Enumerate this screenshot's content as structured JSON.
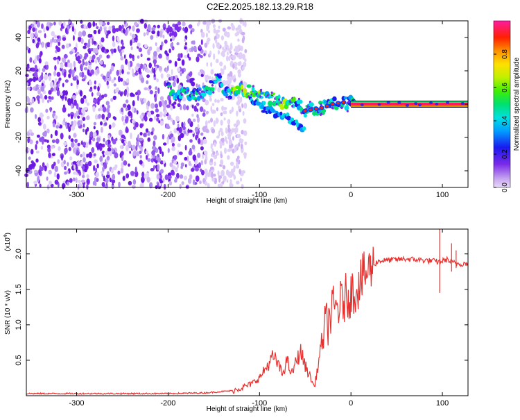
{
  "title": "C2E2.2025.182.13.29.R18",
  "chart_data": [
    {
      "type": "heatmap",
      "xlabel": "Height of straight line (km)",
      "ylabel": "Frequency (Hz)",
      "xlim": [
        -355,
        128
      ],
      "ylim": [
        -50,
        50
      ],
      "xticks": [
        -300,
        -200,
        -100,
        0,
        100
      ],
      "yticks": [
        -40,
        -20,
        0,
        20,
        40
      ],
      "grid": false,
      "colorbar": {
        "label": "Normalized spectral amplitude",
        "range": [
          0,
          1
        ],
        "ticks": [
          0.0,
          0.2,
          0.4,
          0.6,
          0.8
        ]
      },
      "noise_region_x": [
        -355,
        -160
      ],
      "trace": [
        {
          "x": -200,
          "y": 10
        },
        {
          "x": -190,
          "y": 6
        },
        {
          "x": -180,
          "y": 7
        },
        {
          "x": -170,
          "y": 5
        },
        {
          "x": -160,
          "y": 8
        },
        {
          "x": -150,
          "y": 12
        },
        {
          "x": -145,
          "y": 16
        },
        {
          "x": -140,
          "y": 9
        },
        {
          "x": -130,
          "y": 6
        },
        {
          "x": -120,
          "y": 10
        },
        {
          "x": -110,
          "y": 7
        },
        {
          "x": -100,
          "y": 4
        },
        {
          "x": -90,
          "y": 4
        },
        {
          "x": -80,
          "y": 2
        },
        {
          "x": -70,
          "y": 0
        },
        {
          "x": -60,
          "y": 0
        },
        {
          "x": -50,
          "y": -4
        },
        {
          "x": -40,
          "y": -3
        },
        {
          "x": -30,
          "y": -2
        },
        {
          "x": -20,
          "y": 0
        },
        {
          "x": -10,
          "y": 1
        },
        {
          "x": 0,
          "y": 1
        },
        {
          "x": 10,
          "y": 0
        },
        {
          "x": 50,
          "y": 0
        },
        {
          "x": 100,
          "y": 0
        },
        {
          "x": 128,
          "y": 0
        }
      ],
      "branch": [
        {
          "x": -110,
          "y": 2
        },
        {
          "x": -95,
          "y": -3
        },
        {
          "x": -80,
          "y": -6
        },
        {
          "x": -70,
          "y": -8
        },
        {
          "x": -60,
          "y": -12
        },
        {
          "x": -50,
          "y": -16
        }
      ]
    },
    {
      "type": "line",
      "xlabel": "Height of straight line (km)",
      "ylabel": "SNR (10 * v/v)",
      "yscale_note": "(x10",
      "yscale_exp": "4",
      "xlim": [
        -355,
        128
      ],
      "ylim": [
        0,
        2.35
      ],
      "xticks": [
        -300,
        -200,
        -100,
        0,
        100
      ],
      "yticks": [
        0.5,
        1.0,
        1.5,
        2.0
      ],
      "grid": false,
      "color": "#e8312e",
      "series": [
        {
          "x": [
            -355,
            -300,
            -250,
            -200,
            -160,
            -130,
            -120,
            -110,
            -100,
            -95,
            -90,
            -85,
            -80,
            -75,
            -70,
            -65,
            -60,
            -55,
            -50,
            -45,
            -40,
            -35,
            -30,
            -25,
            -20,
            -15,
            -10,
            -5,
            0,
            5,
            10,
            15,
            20,
            25,
            30,
            40,
            50,
            60,
            70,
            80,
            90,
            95,
            100,
            105,
            110,
            115,
            120,
            128
          ],
          "y": [
            0.03,
            0.03,
            0.03,
            0.03,
            0.04,
            0.07,
            0.11,
            0.16,
            0.25,
            0.35,
            0.45,
            0.55,
            0.45,
            0.3,
            0.5,
            0.3,
            0.48,
            0.62,
            0.42,
            0.28,
            0.12,
            0.5,
            0.9,
            1.05,
            1.2,
            1.25,
            1.3,
            1.4,
            1.45,
            1.5,
            1.6,
            1.7,
            1.78,
            1.85,
            1.9,
            1.91,
            1.92,
            1.93,
            1.92,
            1.91,
            1.9,
            1.89,
            1.9,
            1.92,
            1.88,
            1.87,
            1.86,
            1.87
          ]
        }
      ]
    }
  ]
}
